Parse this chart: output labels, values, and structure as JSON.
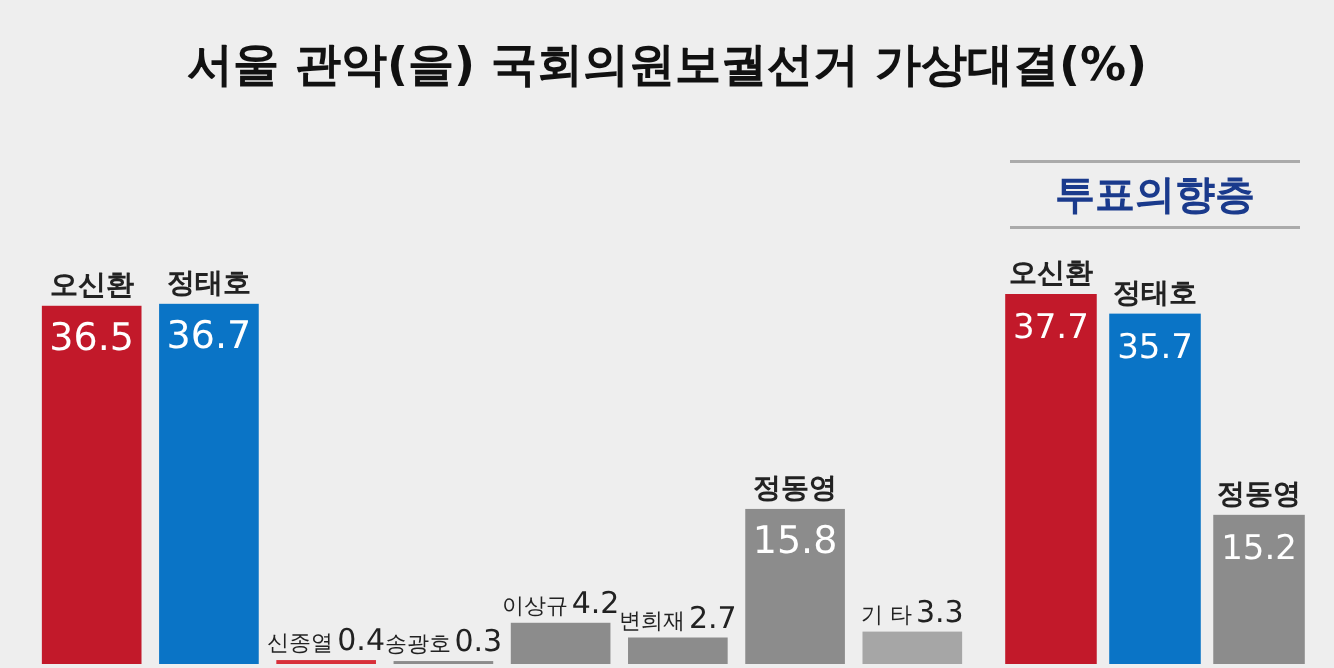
{
  "chart_data": [
    {
      "type": "bar",
      "title": "서울 관악(을) 국회의원보궐선거 가상대결(%)",
      "categories": [
        "오신환",
        "정태호",
        "신종열",
        "송광호",
        "이상규",
        "변희재",
        "정동영",
        "기 타"
      ],
      "values": [
        36.5,
        36.7,
        0.4,
        0.3,
        4.2,
        2.7,
        15.8,
        3.3
      ],
      "colors": [
        "#c2192a",
        "#0a74c6",
        "#d8303a",
        "#8c8c8c",
        "#8c8c8c",
        "#8c8c8c",
        "#8c8c8c",
        "#a6a6a6"
      ],
      "data_labels": true
    },
    {
      "type": "bar",
      "title": "투표의향층",
      "categories": [
        "오신환",
        "정태호",
        "정동영"
      ],
      "values": [
        37.7,
        35.7,
        15.2
      ],
      "colors": [
        "#c2192a",
        "#0a74c6",
        "#8c8c8c"
      ],
      "data_labels": true
    }
  ]
}
